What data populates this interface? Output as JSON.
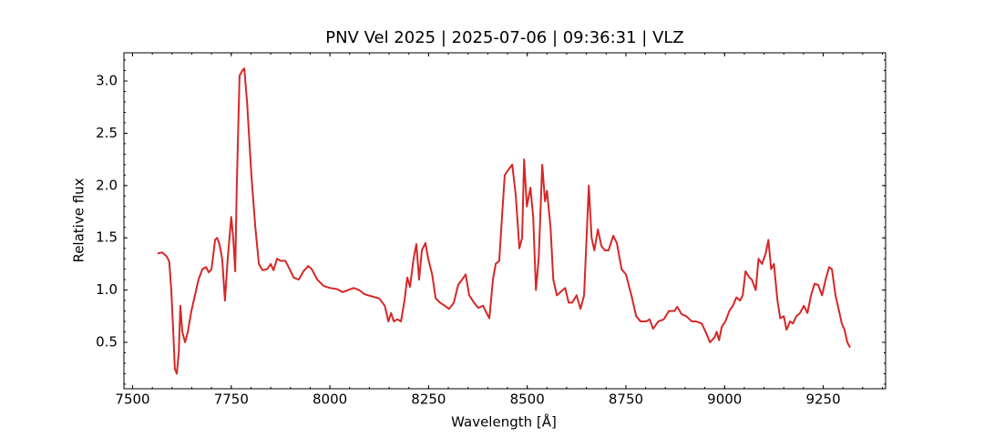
{
  "chart_data": {
    "type": "line",
    "title": "PNV Vel 2025 | 2025-07-06 | 09:36:31 | VLZ",
    "xlabel": "Wavelength [Å]",
    "ylabel": "Relative flux",
    "xlim": [
      7478,
      9408
    ],
    "ylim": [
      0.056,
      3.27
    ],
    "xticks": [
      7500,
      7750,
      8000,
      8250,
      8500,
      8750,
      9000,
      9250
    ],
    "yticks": [
      0.5,
      {
        "value": 1.0,
        "label": "1.0"
      },
      1.5,
      {
        "value": 2.0,
        "label": "2.0"
      },
      2.5,
      {
        "value": 3.0,
        "label": "3.0"
      }
    ],
    "grid": false,
    "series": [
      {
        "name": "PNV Vel 2025",
        "color": "#d62728",
        "x": [
          7563,
          7575,
          7587,
          7593,
          7598,
          7603,
          7607,
          7612,
          7617,
          7621,
          7626,
          7633,
          7640,
          7649,
          7658,
          7667,
          7677,
          7686,
          7693,
          7700,
          7709,
          7714,
          7720,
          7727,
          7734,
          7741,
          7750,
          7755,
          7760,
          7764,
          7771,
          7778,
          7783,
          7790,
          7801,
          7811,
          7820,
          7829,
          7841,
          7850,
          7857,
          7866,
          7875,
          7887,
          7898,
          7908,
          7921,
          7933,
          7945,
          7954,
          7968,
          7984,
          8000,
          8018,
          8032,
          8046,
          8060,
          8074,
          8088,
          8106,
          8125,
          8139,
          8148,
          8155,
          8162,
          8171,
          8180,
          8189,
          8196,
          8203,
          8212,
          8219,
          8226,
          8233,
          8242,
          8249,
          8259,
          8268,
          8279,
          8291,
          8302,
          8314,
          8325,
          8335,
          8344,
          8353,
          8365,
          8376,
          8388,
          8397,
          8404,
          8413,
          8420,
          8429,
          8436,
          8443,
          8452,
          8462,
          8471,
          8480,
          8487,
          8492,
          8499,
          8508,
          8515,
          8522,
          8529,
          8538,
          8545,
          8550,
          8559,
          8566,
          8575,
          8584,
          8596,
          8605,
          8614,
          8625,
          8635,
          8644,
          8656,
          8663,
          8670,
          8679,
          8688,
          8697,
          8706,
          8718,
          8727,
          8739,
          8750,
          8764,
          8776,
          8787,
          8801,
          8810,
          8819,
          8832,
          8846,
          8859,
          8873,
          8880,
          8891,
          8903,
          8917,
          8928,
          8942,
          8952,
          8963,
          8975,
          8980,
          8986,
          8993,
          9002,
          9012,
          9021,
          9030,
          9039,
          9046,
          9053,
          9063,
          9069,
          9079,
          9086,
          9095,
          9104,
          9111,
          9118,
          9125,
          9134,
          9141,
          9150,
          9157,
          9166,
          9173,
          9182,
          9191,
          9201,
          9210,
          9219,
          9228,
          9237,
          9247,
          9256,
          9265,
          9272,
          9281,
          9290,
          9297,
          9304,
          9311,
          9318
        ],
        "values": [
          1.35,
          1.36,
          1.32,
          1.27,
          1.0,
          0.6,
          0.25,
          0.2,
          0.4,
          0.85,
          0.6,
          0.5,
          0.6,
          0.8,
          0.95,
          1.1,
          1.2,
          1.22,
          1.17,
          1.2,
          1.48,
          1.5,
          1.44,
          1.3,
          0.9,
          1.3,
          1.7,
          1.5,
          1.18,
          2.0,
          3.05,
          3.1,
          3.12,
          2.8,
          2.1,
          1.6,
          1.25,
          1.19,
          1.2,
          1.25,
          1.19,
          1.3,
          1.28,
          1.28,
          1.2,
          1.12,
          1.1,
          1.18,
          1.23,
          1.2,
          1.1,
          1.04,
          1.02,
          1.01,
          0.98,
          1.0,
          1.02,
          1.0,
          0.96,
          0.94,
          0.92,
          0.85,
          0.7,
          0.78,
          0.7,
          0.72,
          0.7,
          0.9,
          1.12,
          1.03,
          1.3,
          1.44,
          1.1,
          1.38,
          1.45,
          1.3,
          1.15,
          0.92,
          0.88,
          0.85,
          0.82,
          0.88,
          1.05,
          1.1,
          1.15,
          0.95,
          0.88,
          0.83,
          0.85,
          0.78,
          0.73,
          1.1,
          1.25,
          1.28,
          1.7,
          2.1,
          2.15,
          2.2,
          1.9,
          1.4,
          1.5,
          2.25,
          1.8,
          1.98,
          1.7,
          1.0,
          1.3,
          2.2,
          1.85,
          1.95,
          1.6,
          1.1,
          0.95,
          0.98,
          1.02,
          0.88,
          0.88,
          0.95,
          0.82,
          0.95,
          2.0,
          1.5,
          1.38,
          1.58,
          1.42,
          1.38,
          1.38,
          1.52,
          1.45,
          1.2,
          1.15,
          0.95,
          0.75,
          0.7,
          0.7,
          0.72,
          0.63,
          0.7,
          0.72,
          0.8,
          0.8,
          0.84,
          0.77,
          0.75,
          0.7,
          0.7,
          0.68,
          0.6,
          0.5,
          0.55,
          0.6,
          0.52,
          0.65,
          0.7,
          0.8,
          0.85,
          0.93,
          0.9,
          0.95,
          1.18,
          1.12,
          1.1,
          1.0,
          1.3,
          1.25,
          1.35,
          1.48,
          1.2,
          1.25,
          0.9,
          0.73,
          0.75,
          0.62,
          0.7,
          0.68,
          0.75,
          0.78,
          0.85,
          0.78,
          0.95,
          1.06,
          1.05,
          0.95,
          1.1,
          1.22,
          1.2,
          0.95,
          0.8,
          0.68,
          0.62,
          0.5,
          0.45
        ]
      }
    ]
  }
}
